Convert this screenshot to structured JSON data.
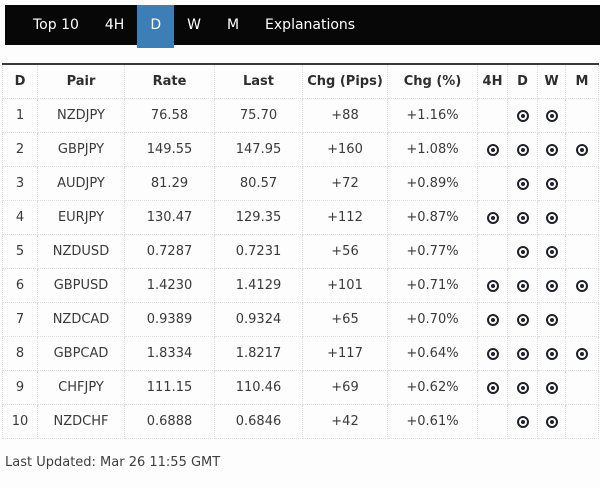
{
  "nav": {
    "items": [
      {
        "label": "Top 10",
        "active": false
      },
      {
        "label": "4H",
        "active": false
      },
      {
        "label": "D",
        "active": true
      },
      {
        "label": "W",
        "active": false
      },
      {
        "label": "M",
        "active": false
      },
      {
        "label": "Explanations",
        "active": false
      }
    ]
  },
  "table": {
    "headers": [
      "D",
      "Pair",
      "Rate",
      "Last",
      "Chg (Pips)",
      "Chg (%)",
      "4H",
      "D",
      "W",
      "M"
    ],
    "signal_icon": "target-icon",
    "rows": [
      {
        "rank": "1",
        "pair": "NZDJPY",
        "rate": "76.58",
        "last": "75.70",
        "chg_pips": "+88",
        "chg_pct": "+1.16%",
        "signals": {
          "h4": false,
          "d": true,
          "w": true,
          "m": false
        }
      },
      {
        "rank": "2",
        "pair": "GBPJPY",
        "rate": "149.55",
        "last": "147.95",
        "chg_pips": "+160",
        "chg_pct": "+1.08%",
        "signals": {
          "h4": true,
          "d": true,
          "w": true,
          "m": true
        }
      },
      {
        "rank": "3",
        "pair": "AUDJPY",
        "rate": "81.29",
        "last": "80.57",
        "chg_pips": "+72",
        "chg_pct": "+0.89%",
        "signals": {
          "h4": false,
          "d": true,
          "w": true,
          "m": false
        }
      },
      {
        "rank": "4",
        "pair": "EURJPY",
        "rate": "130.47",
        "last": "129.35",
        "chg_pips": "+112",
        "chg_pct": "+0.87%",
        "signals": {
          "h4": true,
          "d": true,
          "w": true,
          "m": false
        }
      },
      {
        "rank": "5",
        "pair": "NZDUSD",
        "rate": "0.7287",
        "last": "0.7231",
        "chg_pips": "+56",
        "chg_pct": "+0.77%",
        "signals": {
          "h4": false,
          "d": true,
          "w": true,
          "m": false
        }
      },
      {
        "rank": "6",
        "pair": "GBPUSD",
        "rate": "1.4230",
        "last": "1.4129",
        "chg_pips": "+101",
        "chg_pct": "+0.71%",
        "signals": {
          "h4": true,
          "d": true,
          "w": true,
          "m": true
        }
      },
      {
        "rank": "7",
        "pair": "NZDCAD",
        "rate": "0.9389",
        "last": "0.9324",
        "chg_pips": "+65",
        "chg_pct": "+0.70%",
        "signals": {
          "h4": true,
          "d": true,
          "w": true,
          "m": false
        }
      },
      {
        "rank": "8",
        "pair": "GBPCAD",
        "rate": "1.8334",
        "last": "1.8217",
        "chg_pips": "+117",
        "chg_pct": "+0.64%",
        "signals": {
          "h4": true,
          "d": true,
          "w": true,
          "m": true
        }
      },
      {
        "rank": "9",
        "pair": "CHFJPY",
        "rate": "111.15",
        "last": "110.46",
        "chg_pips": "+69",
        "chg_pct": "+0.62%",
        "signals": {
          "h4": true,
          "d": true,
          "w": true,
          "m": false
        }
      },
      {
        "rank": "10",
        "pair": "NZDCHF",
        "rate": "0.6888",
        "last": "0.6846",
        "chg_pips": "+42",
        "chg_pct": "+0.61%",
        "signals": {
          "h4": false,
          "d": true,
          "w": true,
          "m": false
        }
      }
    ]
  },
  "footer": {
    "last_updated": "Last Updated: Mar 26 11:55 GMT"
  },
  "colors": {
    "nav_background": "#070707",
    "active_tab_background": "#3c7eb5",
    "nav_text": "#ffffff",
    "page_background": "#fdfdfd",
    "table_top_border": "#3a3a3a",
    "cell_border": "#dcdcdc",
    "table_text": "#3a3a3a",
    "icon_color": "#20202a"
  }
}
